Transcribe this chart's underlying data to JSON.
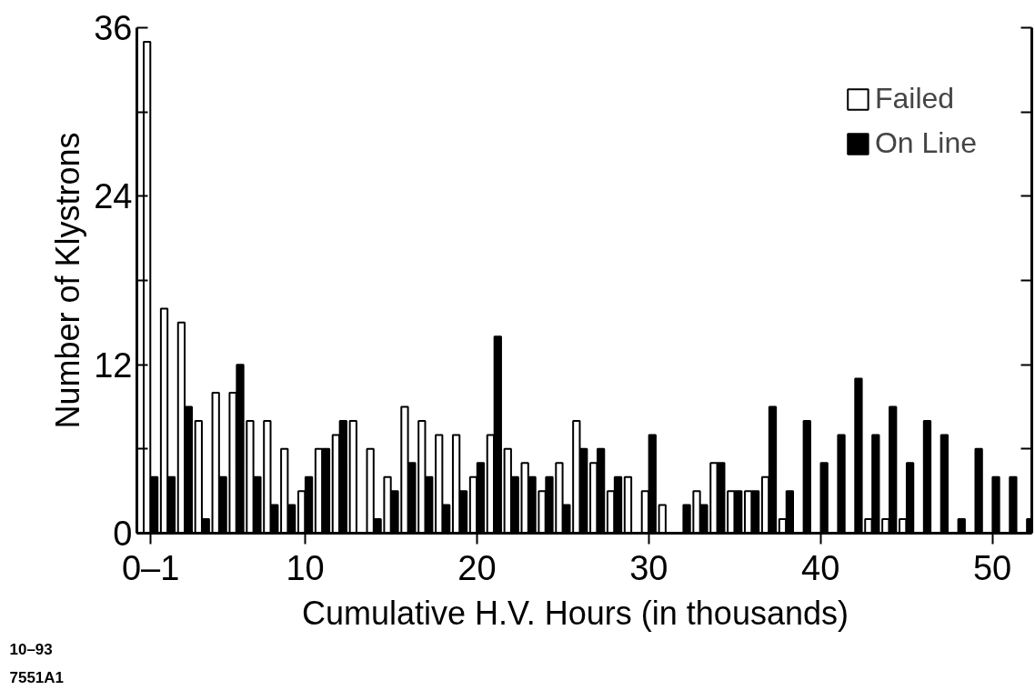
{
  "chart_data": {
    "type": "bar",
    "xlabel": "Cumulative H.V. Hours   (in thousands)",
    "ylabel": "Number of Klystrons",
    "x": [
      1,
      2,
      3,
      4,
      5,
      6,
      7,
      8,
      9,
      10,
      11,
      12,
      13,
      14,
      15,
      16,
      17,
      18,
      19,
      20,
      21,
      22,
      23,
      24,
      25,
      26,
      27,
      28,
      29,
      30,
      31,
      32,
      33,
      34,
      35,
      36,
      37,
      38,
      39,
      40,
      41,
      42,
      43,
      44,
      45,
      46,
      47,
      48,
      49,
      50,
      51,
      52
    ],
    "series": [
      {
        "name": "Failed",
        "color": "#ffffff",
        "values": [
          35,
          16,
          15,
          8,
          10,
          10,
          8,
          8,
          6,
          3,
          6,
          7,
          8,
          6,
          4,
          9,
          8,
          7,
          7,
          4,
          7,
          6,
          5,
          3,
          5,
          8,
          5,
          3,
          4,
          3,
          2,
          0,
          3,
          5,
          3,
          3,
          4,
          1,
          0,
          0,
          0,
          0,
          1,
          1,
          1,
          0,
          0,
          0,
          0,
          0,
          0,
          0
        ]
      },
      {
        "name": "On Line",
        "color": "#000000",
        "values": [
          4,
          4,
          9,
          1,
          4,
          12,
          4,
          2,
          2,
          4,
          6,
          8,
          0,
          1,
          3,
          5,
          4,
          2,
          3,
          5,
          14,
          4,
          4,
          4,
          2,
          6,
          6,
          4,
          0,
          7,
          0,
          2,
          2,
          5,
          3,
          3,
          9,
          3,
          8,
          5,
          7,
          11,
          7,
          9,
          5,
          8,
          7,
          1,
          6,
          4,
          4,
          1
        ]
      }
    ],
    "xlim": [
      0.2,
      52.3
    ],
    "ylim": [
      0,
      36
    ],
    "xticks": [
      {
        "value": 1,
        "label": "0–1"
      },
      10,
      20,
      30,
      40,
      50
    ],
    "yticks": [
      0,
      {
        "value": 6,
        "label": null
      },
      12,
      {
        "value": 18,
        "label": null
      },
      24,
      {
        "value": 30,
        "label": null
      },
      36
    ],
    "grid": false,
    "legend": "top right",
    "annotations": [
      "10–93",
      "7551A1"
    ]
  }
}
